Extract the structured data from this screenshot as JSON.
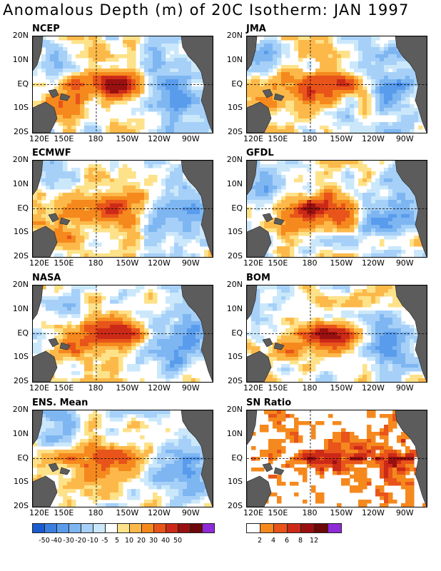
{
  "title": "Anomalous Depth (m) of 20C Isotherm: JAN 1997",
  "lat_labels": [
    "20N",
    "10N",
    "EQ",
    "10S",
    "20S"
  ],
  "lon_labels": [
    "120E",
    "150E",
    "180",
    "150W",
    "120W",
    "90W"
  ],
  "panels": [
    {
      "name": "NCEP",
      "type": "anomaly"
    },
    {
      "name": "JMA",
      "type": "anomaly"
    },
    {
      "name": "ECMWF",
      "type": "anomaly"
    },
    {
      "name": "GFDL",
      "type": "anomaly"
    },
    {
      "name": "NASA",
      "type": "anomaly"
    },
    {
      "name": "BOM",
      "type": "anomaly"
    },
    {
      "name": "ENS. Mean",
      "type": "anomaly"
    },
    {
      "name": "SN Ratio",
      "type": "ratio"
    }
  ],
  "anomaly_scale": {
    "colors": [
      "#1a5bd0",
      "#3a7fe0",
      "#5a9cec",
      "#7eb6f2",
      "#a6d0f8",
      "#cbe8fb",
      "#ffffff",
      "#fde28a",
      "#fcb94a",
      "#f5891e",
      "#e8541a",
      "#cc2a18",
      "#991010",
      "#6e0808",
      "#8e2ad8"
    ],
    "labels": [
      "-50",
      "-40",
      "-30",
      "-20",
      "-10",
      "-5",
      "5",
      "10",
      "20",
      "30",
      "40",
      "50"
    ]
  },
  "ratio_scale": {
    "colors": [
      "#ffffff",
      "#f5891e",
      "#e8541a",
      "#cc2a18",
      "#991010",
      "#6e0808",
      "#8e2ad8"
    ],
    "labels": [
      "2",
      "4",
      "6",
      "8",
      "12"
    ]
  }
}
